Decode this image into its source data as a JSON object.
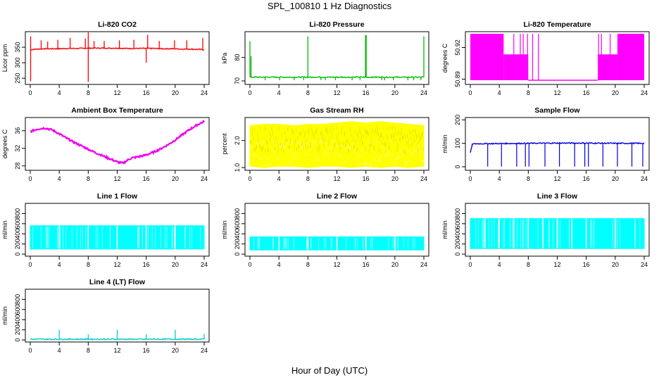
{
  "figure": {
    "title": "SPL_100810  1 Hz Diagnostics",
    "xlabel": "Hour of Day (UTC)"
  },
  "chart_data": [
    {
      "type": "line",
      "title": "Li-820 CO2",
      "ylabel": "Licor ppm",
      "color": "#ff0000",
      "xlim": [
        0,
        24
      ],
      "ylim": [
        230,
        400
      ],
      "xticks": [
        "0",
        "4",
        "8",
        "12",
        "16",
        "20",
        "24"
      ],
      "yticks": [
        "250",
        "300",
        "350"
      ],
      "x": [
        0,
        0.5,
        1,
        2,
        3,
        4,
        5,
        6,
        7,
        8,
        9,
        10,
        11,
        12,
        13,
        14,
        15,
        16,
        17,
        18,
        19,
        20,
        21,
        22,
        23,
        24
      ],
      "y": [
        342,
        343,
        344,
        345,
        345,
        345,
        346,
        346,
        346,
        347,
        347,
        347,
        347,
        347,
        346,
        346,
        346,
        346,
        346,
        345,
        345,
        345,
        344,
        344,
        343,
        342
      ],
      "spikes": [
        [
          0.05,
          240
        ],
        [
          0.05,
          385
        ],
        [
          1.5,
          372
        ],
        [
          2.4,
          368
        ],
        [
          3.8,
          374
        ],
        [
          5.5,
          380
        ],
        [
          7.6,
          378
        ],
        [
          8,
          238
        ],
        [
          8,
          398
        ],
        [
          8.8,
          370
        ],
        [
          10.2,
          370
        ],
        [
          12.3,
          372
        ],
        [
          14.3,
          374
        ],
        [
          16,
          300
        ],
        [
          16.2,
          390
        ],
        [
          17.8,
          370
        ],
        [
          19.9,
          372
        ],
        [
          21.6,
          372
        ],
        [
          23.8,
          380
        ]
      ]
    },
    {
      "type": "line",
      "title": "Li-820 Pressure",
      "ylabel": "kPa",
      "color": "#00bb00",
      "xlim": [
        0,
        24
      ],
      "ylim": [
        68.5,
        91
      ],
      "xticks": [
        "0",
        "4",
        "8",
        "12",
        "16",
        "20",
        "24"
      ],
      "yticks": [
        "70",
        "80"
      ],
      "x": [
        0,
        24
      ],
      "y": [
        71.6,
        71.6
      ],
      "spikes": [
        [
          0,
          87
        ],
        [
          0.15,
          80.5
        ],
        [
          8,
          89
        ],
        [
          15.95,
          89.5
        ],
        [
          16.05,
          89.5
        ],
        [
          24,
          89
        ]
      ],
      "dips": [
        2.1,
        4.1,
        6.1,
        7.4,
        9.8,
        10.4,
        11.8,
        14.1,
        15.2,
        18.2,
        18.6,
        19.8,
        21.8,
        22.6,
        23.6
      ]
    },
    {
      "type": "area",
      "title": "Li-820 Temperature",
      "ylabel": "degrees C",
      "color": "#ff00ff",
      "xlim": [
        0,
        24
      ],
      "ylim": [
        50.885,
        50.935
      ],
      "xticks": [
        "0",
        "4",
        "8",
        "12",
        "16",
        "20",
        "24"
      ],
      "yticks": [
        "50.89",
        "50.92"
      ],
      "ytick_values": [
        50.89,
        50.92
      ],
      "bands": [
        {
          "x0": 0,
          "x1": 4.6,
          "lo": 50.889,
          "hi": 50.933
        },
        {
          "x0": 4.6,
          "x1": 8,
          "lo": 50.889,
          "hi": 50.9135
        },
        {
          "x0": 8,
          "x1": 17.6,
          "lo": 50.889,
          "hi": 50.8895
        },
        {
          "x0": 17.6,
          "x1": 20.3,
          "lo": 50.889,
          "hi": 50.9135
        },
        {
          "x0": 20.3,
          "x1": 24,
          "lo": 50.889,
          "hi": 50.933
        }
      ],
      "lines": [
        6.0,
        6.9,
        7.3,
        7.9,
        8.6,
        9.4,
        17.7,
        18.1,
        19.3
      ]
    },
    {
      "type": "line",
      "title": "Ambient Box Temperature",
      "ylabel": "degrees C",
      "color": "#ee00ee",
      "xlim": [
        0,
        24
      ],
      "ylim": [
        27,
        39
      ],
      "xticks": [
        "0",
        "4",
        "8",
        "12",
        "16",
        "20",
        "24"
      ],
      "yticks": [
        "28",
        "32",
        "36"
      ],
      "x": [
        0,
        1,
        2,
        3,
        4,
        5,
        6,
        7,
        8,
        9,
        10,
        11,
        12,
        12.8,
        13.5,
        14,
        15,
        16,
        17,
        18,
        19,
        20,
        21,
        22,
        23,
        24
      ],
      "y": [
        35.8,
        36.4,
        36.6,
        36.2,
        35.3,
        34.3,
        33.4,
        32.6,
        31.8,
        31.0,
        30.3,
        29.6,
        28.9,
        28.6,
        29.4,
        29.8,
        30.1,
        30.5,
        31.1,
        31.9,
        32.8,
        33.9,
        35.1,
        36.3,
        37.3,
        38.1
      ]
    },
    {
      "type": "area",
      "title": "Gas Stream RH",
      "ylabel": "percent",
      "color": "#ffff00",
      "xlim": [
        0,
        24
      ],
      "ylim": [
        0.9,
        2.85
      ],
      "xticks": [
        "0",
        "4",
        "8",
        "12",
        "16",
        "20",
        "24"
      ],
      "yticks": [
        "1.0",
        "2.0"
      ],
      "ytick_values": [
        1.0,
        2.0
      ],
      "x": [
        0,
        2,
        4,
        6,
        8,
        10,
        12,
        14,
        16,
        18,
        20,
        22,
        24
      ],
      "upper": [
        2.55,
        2.6,
        2.6,
        2.55,
        2.6,
        2.6,
        2.65,
        2.7,
        2.65,
        2.7,
        2.65,
        2.6,
        2.55
      ],
      "lower": [
        1.05,
        1.0,
        1.05,
        1.05,
        1.0,
        1.05,
        1.05,
        1.0,
        1.05,
        1.0,
        1.05,
        1.0,
        1.05
      ]
    },
    {
      "type": "line",
      "title": "Sample Flow",
      "ylabel": "ml/min",
      "color": "#0000dd",
      "xlim": [
        0,
        24
      ],
      "ylim": [
        -15,
        210
      ],
      "xticks": [
        "0",
        "4",
        "8",
        "12",
        "16",
        "20",
        "24"
      ],
      "yticks": [
        "0",
        "100",
        "200"
      ],
      "x": [
        0,
        0.3,
        4,
        8,
        12,
        16,
        20,
        24
      ],
      "y": [
        60,
        98,
        99,
        100,
        101,
        101,
        100,
        100
      ],
      "dips": [
        2.4,
        4.3,
        6.4,
        7.6,
        8.1,
        10.3,
        12.3,
        14.4,
        15.8,
        16.3,
        18.3,
        20.3,
        22.3,
        23.8
      ]
    },
    {
      "type": "area",
      "title": "Line 1 Flow",
      "ylabel": "ml/min",
      "color": "#00ffff",
      "xlim": [
        0,
        24
      ],
      "ylim": [
        -40,
        1000
      ],
      "xticks": [
        "0",
        "4",
        "8",
        "12",
        "16",
        "20",
        "24"
      ],
      "yticks": [
        "0",
        "200",
        "400",
        "600",
        "800"
      ],
      "ytick_values": [
        0,
        200,
        400,
        600,
        800
      ],
      "x": [
        0,
        24
      ],
      "upper": [
        560,
        560
      ],
      "lower": [
        100,
        100
      ],
      "gaps": [
        4,
        8,
        12,
        16,
        20
      ]
    },
    {
      "type": "area",
      "title": "Line 2 Flow",
      "ylabel": "ml/min",
      "color": "#00ffff",
      "xlim": [
        0,
        24
      ],
      "ylim": [
        -40,
        1000
      ],
      "xticks": [
        "0",
        "4",
        "8",
        "12",
        "16",
        "20",
        "24"
      ],
      "yticks": [
        "0",
        "200",
        "400",
        "600",
        "800"
      ],
      "ytick_values": [
        0,
        200,
        400,
        600,
        800
      ],
      "x": [
        0,
        24
      ],
      "upper": [
        340,
        340
      ],
      "lower": [
        80,
        80
      ],
      "gaps": [
        4,
        8,
        12,
        16,
        20
      ]
    },
    {
      "type": "area",
      "title": "Line 3 Flow",
      "ylabel": "ml/min",
      "color": "#00ffff",
      "xlim": [
        0,
        24
      ],
      "ylim": [
        -40,
        1000
      ],
      "xticks": [
        "0",
        "4",
        "8",
        "12",
        "16",
        "20",
        "24"
      ],
      "yticks": [
        "0",
        "200",
        "400",
        "600",
        "800"
      ],
      "ytick_values": [
        0,
        200,
        400,
        600,
        800
      ],
      "x": [
        0,
        24
      ],
      "upper": [
        700,
        700
      ],
      "lower": [
        110,
        110
      ],
      "gaps": [
        2.0,
        4.0,
        6.0,
        8.0,
        10.0,
        12.0,
        14.0,
        16.0,
        20.0
      ]
    },
    {
      "type": "line",
      "title": "Line 4 (LT) Flow",
      "ylabel": "ml/min",
      "color": "#00cccc",
      "xlim": [
        0,
        24
      ],
      "ylim": [
        -40,
        1000
      ],
      "xticks": [
        "0",
        "4",
        "8",
        "12",
        "16",
        "20",
        "24"
      ],
      "yticks": [
        "0",
        "200",
        "400",
        "600",
        "800"
      ],
      "ytick_values": [
        0,
        200,
        400,
        600,
        800
      ],
      "x": [
        0,
        24
      ],
      "y": [
        15,
        15
      ],
      "spikes": [
        [
          4,
          200
        ],
        [
          8,
          110
        ],
        [
          12,
          200
        ],
        [
          16,
          110
        ],
        [
          20,
          200
        ],
        [
          24,
          120
        ]
      ]
    }
  ]
}
